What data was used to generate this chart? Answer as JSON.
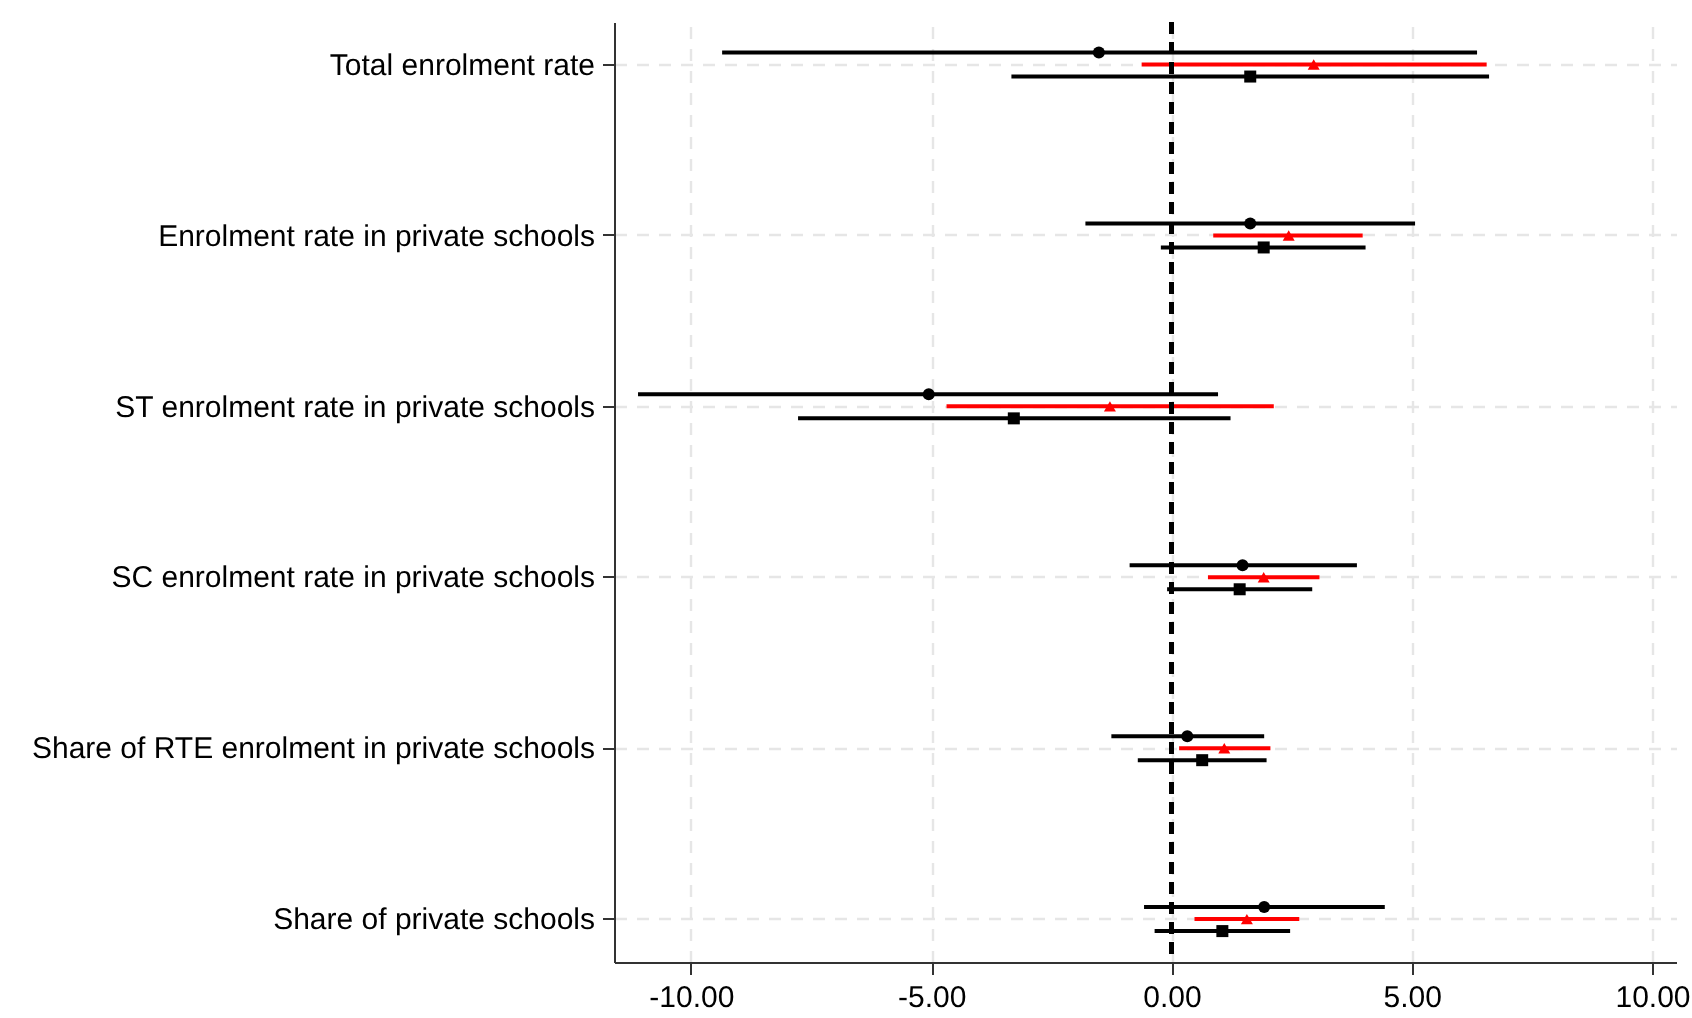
{
  "chart_data": {
    "type": "scatter",
    "orientation": "horizontal",
    "categories": [
      "Total enrolment rate",
      "Enrolment rate in private schools",
      "ST enrolment rate in private schools",
      "SC enrolment rate in private schools",
      "Share of RTE enrolment in private schools",
      "Share of private schools"
    ],
    "series": [
      {
        "color": "#000000",
        "marker": "circle",
        "values": [
          -1.51,
          1.64,
          -5.05,
          1.48,
          0.33,
          1.93
        ],
        "errors": [
          [
            -9.35,
            6.36
          ],
          [
            -1.79,
            5.07
          ],
          [
            -11.1,
            0.97
          ],
          [
            -0.87,
            3.86
          ],
          [
            -1.25,
            1.93
          ],
          [
            -0.57,
            4.44
          ]
        ]
      },
      {
        "color": "#ff0000",
        "marker": "triangle",
        "values": [
          2.96,
          2.44,
          -1.28,
          1.92,
          1.1,
          1.57
        ],
        "errors": [
          [
            -0.62,
            6.56
          ],
          [
            0.87,
            3.98
          ],
          [
            -4.68,
            2.13
          ],
          [
            0.76,
            3.08
          ],
          [
            0.16,
            2.06
          ],
          [
            0.48,
            2.66
          ]
        ]
      },
      {
        "color": "#000000",
        "marker": "square",
        "values": [
          1.64,
          1.92,
          -3.28,
          1.42,
          0.64,
          1.06
        ],
        "errors": [
          [
            -3.33,
            6.61
          ],
          [
            -0.22,
            4.04
          ],
          [
            -7.77,
            1.23
          ],
          [
            -0.09,
            2.93
          ],
          [
            -0.7,
            1.98
          ],
          [
            -0.35,
            2.47
          ]
        ]
      }
    ],
    "xlim": [
      -11.6,
      10.5
    ],
    "xticks": [
      {
        "value": -10,
        "label": "-10.00"
      },
      {
        "value": -5,
        "label": "-5.00"
      },
      {
        "value": 0,
        "label": "0.00"
      },
      {
        "value": 5,
        "label": "5.00"
      },
      {
        "value": 10,
        "label": "10.00"
      }
    ],
    "ref_lines": [
      {
        "axis": "x",
        "value": 0,
        "color": "#000000",
        "line_style": "dashed"
      }
    ],
    "grid": true
  }
}
